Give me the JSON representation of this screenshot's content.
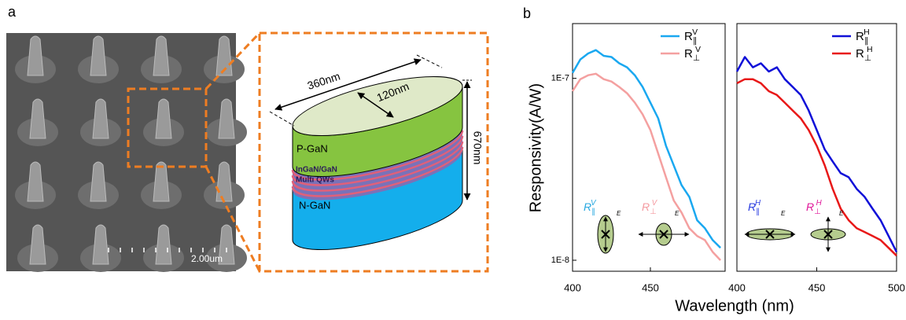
{
  "panel_a": {
    "label": "a",
    "scale_bar": "2.00um",
    "schematic": {
      "length": "360nm",
      "width": "120nm",
      "height": "670nm",
      "p_layer": "P-GaN",
      "qw_line1": "InGaN/GaN",
      "qw_line2": "Multi QWs",
      "n_layer": "N-GaN"
    }
  },
  "panel_b": {
    "label": "b",
    "field_label": "E"
  },
  "chart_data": [
    {
      "type": "line",
      "log_y": true,
      "ylabel": "Responsivity(A/W)",
      "xlabel": "Wavelength (nm)",
      "xlim": [
        400,
        498
      ],
      "xticks": [
        400,
        450
      ],
      "ylim": [
        8.7e-09,
        2e-07
      ],
      "yticks": [
        {
          "value": 1e-07,
          "label": "1E-7"
        },
        {
          "value": 1e-08,
          "label": "1E-8"
        }
      ],
      "legend": "upper right",
      "x": [
        400,
        405,
        410,
        415,
        420,
        425,
        430,
        435,
        440,
        445,
        450,
        455,
        460,
        465,
        470,
        475,
        480,
        485,
        490,
        495
      ],
      "series": [
        {
          "name": "R∥V",
          "color": "#1aa8f0",
          "values": [
            1.07e-07,
            1.27e-07,
            1.37e-07,
            1.43e-07,
            1.33e-07,
            1.31e-07,
            1.21e-07,
            1.15e-07,
            1.04e-07,
            8.97e-08,
            7.35e-08,
            6.03e-08,
            4.26e-08,
            3.32e-08,
            2.59e-08,
            2.23e-08,
            1.66e-08,
            1.5e-08,
            1.29e-08,
            1.17e-08
          ]
        },
        {
          "name": "R⊥V",
          "color": "#f4a0a0",
          "values": [
            8.5e-08,
            9.9e-08,
            1.04e-07,
            1.06e-07,
            9.9e-08,
            9.6e-08,
            8.97e-08,
            8.28e-08,
            7.35e-08,
            6.34e-08,
            5.2e-08,
            3.86e-08,
            2.86e-08,
            2.13e-08,
            1.83e-08,
            1.5e-08,
            1.36e-08,
            1.29e-08,
            1.11e-08,
            1e-08
          ]
        }
      ],
      "annotations": [
        {
          "text": "R∥V",
          "color": "#29a8e0"
        },
        {
          "text": "R⊥V",
          "color": "#f49aa0"
        }
      ]
    },
    {
      "type": "line",
      "log_y": true,
      "xlim": [
        400,
        500
      ],
      "xticks": [
        400,
        450,
        500
      ],
      "ylim": [
        8.7e-09,
        2e-07
      ],
      "legend": "upper right",
      "x": [
        400,
        405,
        410,
        415,
        420,
        425,
        430,
        435,
        440,
        445,
        450,
        455,
        460,
        465,
        470,
        475,
        480,
        485,
        490,
        495,
        500
      ],
      "series": [
        {
          "name": "R∥H",
          "color": "#1010d8",
          "values": [
            1.09e-07,
            1.31e-07,
            1.15e-07,
            1.21e-07,
            1.09e-07,
            1.15e-07,
            9.9e-08,
            8.97e-08,
            8.1e-08,
            6.65e-08,
            5.2e-08,
            4.06e-08,
            3.49e-08,
            3.01e-08,
            2.86e-08,
            2.47e-08,
            2.23e-08,
            1.92e-08,
            1.66e-08,
            1.36e-08,
            1.11e-08
          ]
        },
        {
          "name": "R⊥H",
          "color": "#e81818",
          "values": [
            9.4e-08,
            9.9e-08,
            9.9e-08,
            9.4e-08,
            8.5e-08,
            8.1e-08,
            7.35e-08,
            6.65e-08,
            6.03e-08,
            5.2e-08,
            4.26e-08,
            3.32e-08,
            2.47e-08,
            1.92e-08,
            1.66e-08,
            1.5e-08,
            1.43e-08,
            1.36e-08,
            1.29e-08,
            1.17e-08,
            1.06e-08
          ]
        }
      ],
      "annotations": [
        {
          "text": "R∥H",
          "color": "#2a3ce0"
        },
        {
          "text": "R⊥H",
          "color": "#e0189a"
        }
      ]
    }
  ]
}
